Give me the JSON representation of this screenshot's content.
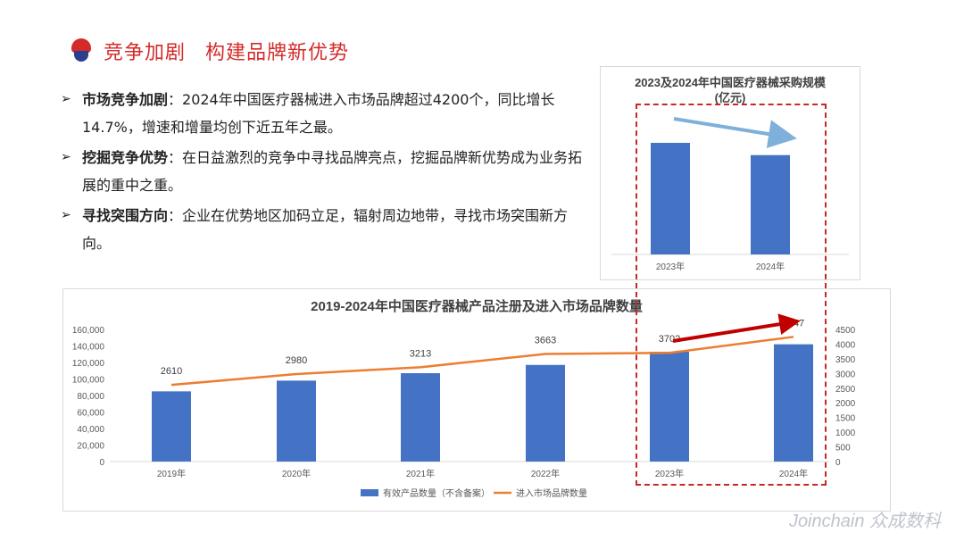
{
  "header": {
    "title_part1": "竞争加剧",
    "title_part2": "构建品牌新优势"
  },
  "bullets": [
    {
      "head": "市场竞争加剧",
      "text": "：2024年中国医疗器械进入市场品牌超过4200个，同比增长14.7%，增速和增量均创下近五年之最。"
    },
    {
      "head": "挖掘竞争优势",
      "text": "：在日益激烈的竞争中寻找品牌亮点，挖掘品牌新优势成为业务拓展的重中之重。"
    },
    {
      "head": "寻找突围方向",
      "text": "：企业在优势地区加码立足，辐射周边地带，寻找市场突围新方向。"
    }
  ],
  "bullet_marker": "➢",
  "watermark": "Joinchain 众成数科",
  "colors": {
    "accent": "#d42a2a",
    "bar": "#4472c4",
    "line": "#ed7d31",
    "arrow_light": "#7fb0d9",
    "arrow_dark": "#c00000"
  },
  "chart_data": [
    {
      "type": "bar",
      "title": "2023及2024年中国医疗器械采购规模",
      "subtitle": "(亿元)",
      "categories": [
        "2023年",
        "2024年"
      ],
      "values": [
        100,
        89
      ],
      "annotations": [
        "down-arrow"
      ]
    },
    {
      "type": "bar",
      "title": "2019-2024年中国医疗器械产品注册及进入市场品牌数量",
      "categories": [
        "2019年",
        "2020年",
        "2021年",
        "2022年",
        "2023年",
        "2024年"
      ],
      "series": [
        {
          "name": "有效产品数量（不含备案）",
          "type": "bar",
          "axis": "left",
          "values": [
            85000,
            98000,
            107000,
            117000,
            133000,
            142000
          ]
        },
        {
          "name": "进入市场品牌数量",
          "type": "line",
          "axis": "right",
          "values": [
            2610,
            2980,
            3213,
            3663,
            3702,
            4247
          ]
        }
      ],
      "y_left_ticks": [
        "0",
        "20,000",
        "40,000",
        "60,000",
        "80,000",
        "100,000",
        "120,000",
        "140,000",
        "160,000"
      ],
      "y_left_lim": [
        0,
        160000
      ],
      "y_right_ticks": [
        "0",
        "500",
        "1000",
        "1500",
        "2000",
        "2500",
        "3000",
        "3500",
        "4000",
        "4500"
      ],
      "y_right_lim": [
        0,
        4500
      ],
      "data_labels": [
        "2610",
        "2980",
        "3213",
        "3663",
        "3702",
        "4247"
      ],
      "legend_position": "bottom"
    }
  ]
}
